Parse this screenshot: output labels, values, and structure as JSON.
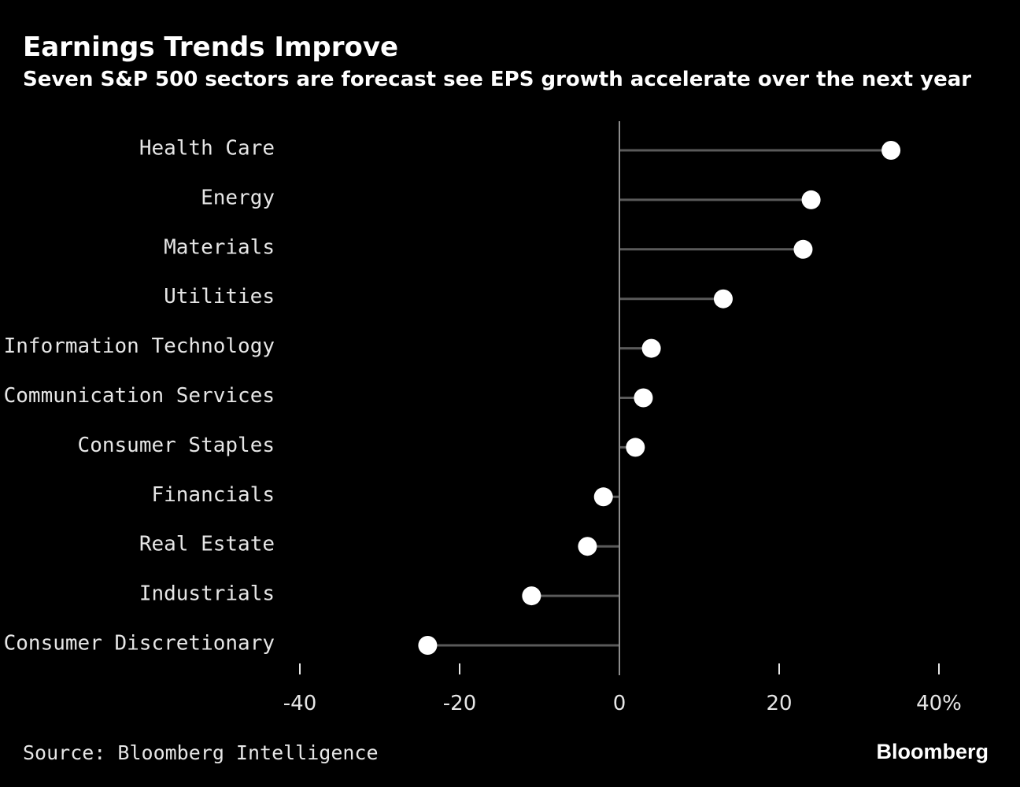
{
  "chart_data": {
    "type": "lollipop",
    "title": "Earnings Trends Improve",
    "subtitle": "Seven S&P 500 sectors are forecast see EPS growth accelerate over the next year",
    "categories": [
      "Health Care",
      "Energy",
      "Materials",
      "Utilities",
      "Information Technology",
      "Communication Services",
      "Consumer Staples",
      "Financials",
      "Real Estate",
      "Industrials",
      "Consumer Discretionary"
    ],
    "values": [
      34,
      24,
      23,
      13,
      4,
      3,
      2,
      -2,
      -4,
      -11,
      -24
    ],
    "xlim": [
      -40,
      40
    ],
    "xticks": [
      {
        "value": -40,
        "label": "-40"
      },
      {
        "value": -20,
        "label": "-20"
      },
      {
        "value": 0,
        "label": "0"
      },
      {
        "value": 20,
        "label": "20"
      },
      {
        "value": 40,
        "label": "40%"
      }
    ],
    "xlabel": "",
    "ylabel": "",
    "grid": false,
    "colors": {
      "background": "#000000",
      "dot": "#ffffff",
      "stem": "#5a5a5a",
      "axis": "#8c8c8c",
      "text": "#e6e6e6"
    }
  },
  "footer": {
    "source": "Source: Bloomberg Intelligence",
    "brand": "Bloomberg"
  }
}
